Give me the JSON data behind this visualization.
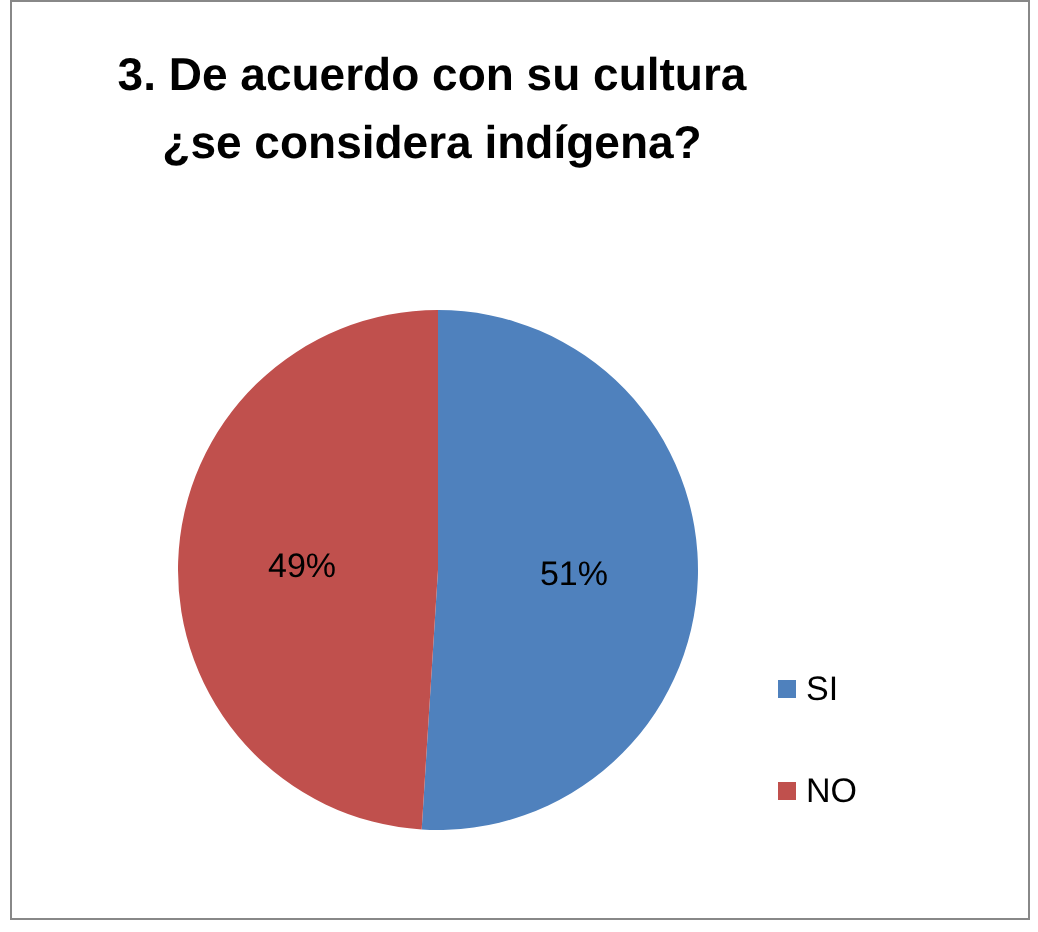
{
  "chart_data": {
    "type": "pie",
    "title": "3. De acuerdo con su cultura\n¿se considera indígena?",
    "categories": [
      "SI",
      "NO"
    ],
    "values": [
      51,
      49
    ],
    "colors": [
      "#4f81bd",
      "#c0504d"
    ],
    "value_labels": [
      "51%",
      "49%"
    ],
    "legend": "right"
  }
}
